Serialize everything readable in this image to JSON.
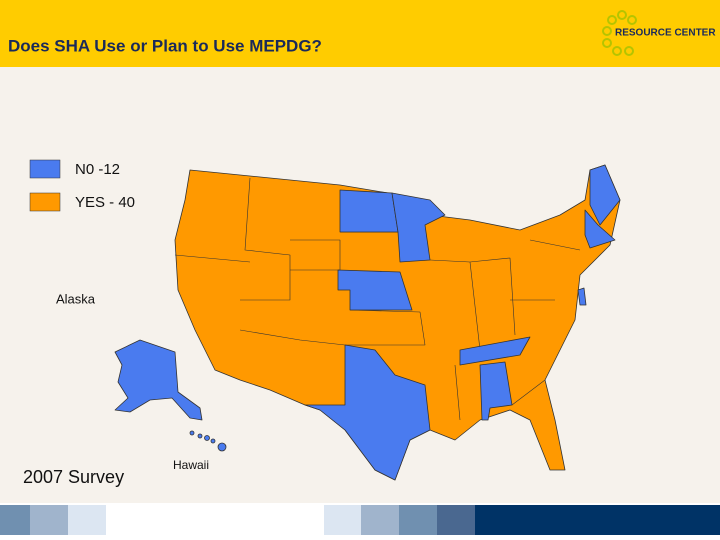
{
  "header": {
    "title": "Does SHA Use or Plan to Use MEPDG?",
    "logo": "RESOURCE CENTER"
  },
  "legend": {
    "items": [
      "N0 -12",
      "YES - 40"
    ]
  },
  "map": {
    "labels": {
      "alaska": "Alaska",
      "hawaii": "Hawaii"
    }
  },
  "footer": {
    "caption": "2007 Survey"
  }
}
